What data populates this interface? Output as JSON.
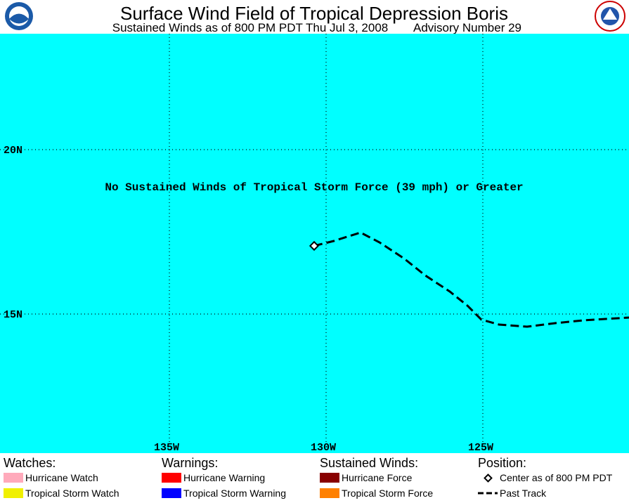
{
  "header": {
    "title": "Surface Wind Field of Tropical Depression Boris",
    "subtitle": "Sustained Winds as of 800 PM PDT Thu Jul 3, 2008",
    "advisory": "Advisory Number 29"
  },
  "map": {
    "lat_labels": [
      "20N",
      "15N"
    ],
    "lon_labels": [
      "135W",
      "130W",
      "125W"
    ],
    "annotation": "No Sustained Winds of Tropical Storm Force (39 mph) or Greater"
  },
  "legend": {
    "watches": {
      "title": "Watches:",
      "items": [
        {
          "label": "Hurricane Watch",
          "color": "#ffaabb"
        },
        {
          "label": "Tropical Storm Watch",
          "color": "#f0f000"
        }
      ]
    },
    "warnings": {
      "title": "Warnings:",
      "items": [
        {
          "label": "Hurricane Warning",
          "color": "#ff0000"
        },
        {
          "label": "Tropical Storm Warning",
          "color": "#0000ff"
        }
      ]
    },
    "winds": {
      "title": "Sustained Winds:",
      "items": [
        {
          "label": "Hurricane Force",
          "color": "#880000"
        },
        {
          "label": "Tropical Storm Force",
          "color": "#ff8000"
        }
      ]
    },
    "position": {
      "title": "Position:",
      "items": [
        {
          "label": "Center as of 800 PM PDT"
        },
        {
          "label": "Past Track"
        }
      ]
    }
  }
}
